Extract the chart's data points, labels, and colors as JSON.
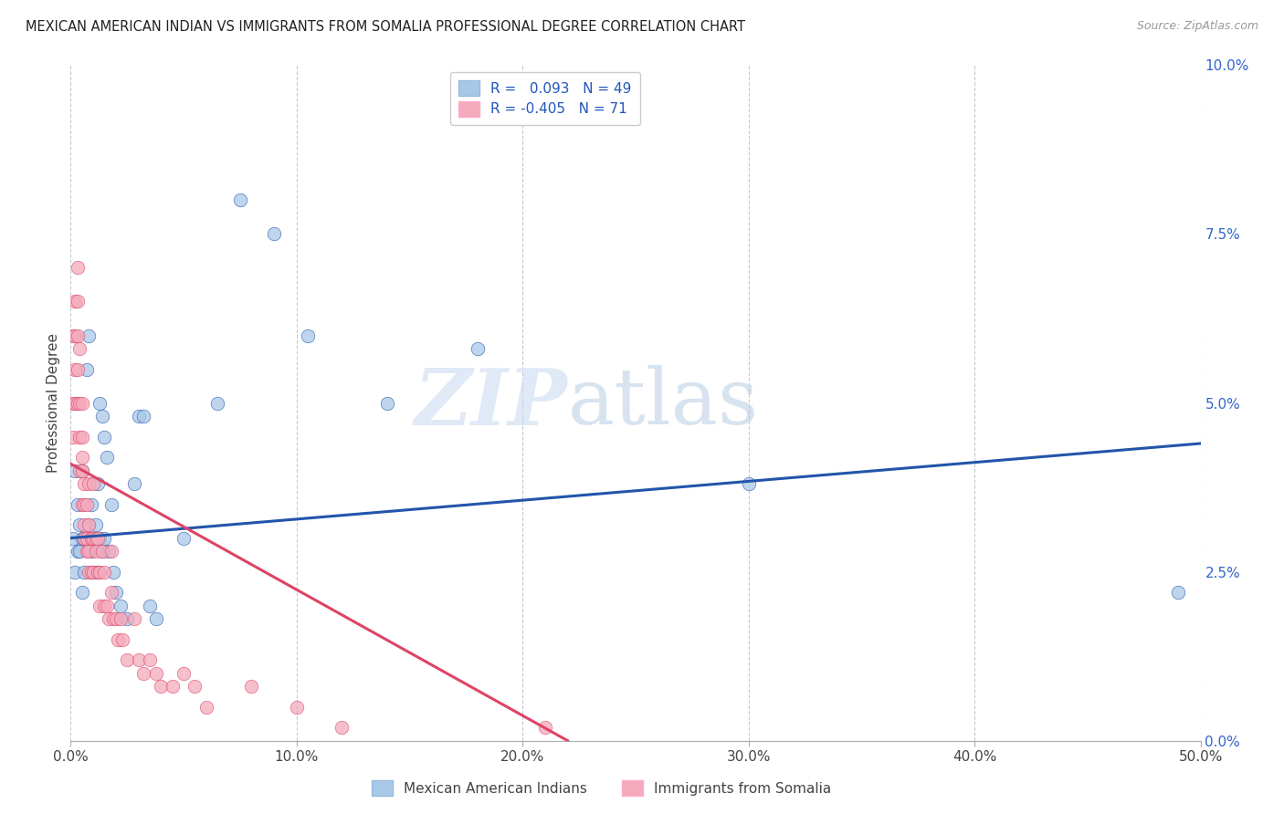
{
  "title": "MEXICAN AMERICAN INDIAN VS IMMIGRANTS FROM SOMALIA PROFESSIONAL DEGREE CORRELATION CHART",
  "source": "Source: ZipAtlas.com",
  "xlabel_ticks": [
    "0.0%",
    "10.0%",
    "20.0%",
    "30.0%",
    "40.0%",
    "50.0%"
  ],
  "ylabel_ticks": [
    "0.0%",
    "2.5%",
    "5.0%",
    "7.5%",
    "10.0%"
  ],
  "xlim": [
    0.0,
    0.5
  ],
  "ylim": [
    0.0,
    0.1
  ],
  "ylabel": "Professional Degree",
  "legend_labels": [
    "Mexican American Indians",
    "Immigrants from Somalia"
  ],
  "r_blue": 0.093,
  "n_blue": 49,
  "r_pink": -0.405,
  "n_pink": 71,
  "blue_color": "#A8C8E8",
  "pink_color": "#F4AABC",
  "blue_line_color": "#2255AA",
  "pink_line_color": "#DD4466",
  "watermark_zip": "ZIP",
  "watermark_atlas": "atlas",
  "blue_line_x": [
    0.0,
    0.5
  ],
  "blue_line_y": [
    0.03,
    0.044
  ],
  "pink_line_x": [
    0.0,
    0.22
  ],
  "pink_line_y": [
    0.041,
    0.0
  ],
  "blue_scatter_x": [
    0.001,
    0.002,
    0.002,
    0.003,
    0.003,
    0.004,
    0.004,
    0.005,
    0.005,
    0.005,
    0.006,
    0.006,
    0.007,
    0.008,
    0.008,
    0.009,
    0.009,
    0.01,
    0.01,
    0.011,
    0.012,
    0.012,
    0.013,
    0.013,
    0.014,
    0.014,
    0.015,
    0.015,
    0.016,
    0.017,
    0.018,
    0.019,
    0.02,
    0.022,
    0.025,
    0.028,
    0.03,
    0.032,
    0.035,
    0.038,
    0.05,
    0.065,
    0.075,
    0.09,
    0.105,
    0.14,
    0.18,
    0.3,
    0.49
  ],
  "blue_scatter_y": [
    0.03,
    0.025,
    0.04,
    0.028,
    0.035,
    0.032,
    0.028,
    0.04,
    0.03,
    0.022,
    0.03,
    0.025,
    0.055,
    0.06,
    0.032,
    0.028,
    0.035,
    0.025,
    0.03,
    0.032,
    0.025,
    0.038,
    0.05,
    0.03,
    0.028,
    0.048,
    0.045,
    0.03,
    0.042,
    0.028,
    0.035,
    0.025,
    0.022,
    0.02,
    0.018,
    0.038,
    0.048,
    0.048,
    0.02,
    0.018,
    0.03,
    0.05,
    0.08,
    0.075,
    0.06,
    0.05,
    0.058,
    0.038,
    0.022
  ],
  "pink_scatter_x": [
    0.001,
    0.001,
    0.001,
    0.002,
    0.002,
    0.002,
    0.002,
    0.003,
    0.003,
    0.003,
    0.003,
    0.003,
    0.004,
    0.004,
    0.004,
    0.004,
    0.005,
    0.005,
    0.005,
    0.005,
    0.005,
    0.006,
    0.006,
    0.006,
    0.006,
    0.007,
    0.007,
    0.007,
    0.008,
    0.008,
    0.008,
    0.008,
    0.009,
    0.009,
    0.009,
    0.01,
    0.01,
    0.01,
    0.011,
    0.011,
    0.012,
    0.012,
    0.013,
    0.013,
    0.014,
    0.015,
    0.015,
    0.016,
    0.017,
    0.018,
    0.018,
    0.019,
    0.02,
    0.021,
    0.022,
    0.023,
    0.025,
    0.028,
    0.03,
    0.032,
    0.035,
    0.038,
    0.04,
    0.045,
    0.05,
    0.055,
    0.06,
    0.08,
    0.1,
    0.12,
    0.21
  ],
  "pink_scatter_y": [
    0.05,
    0.045,
    0.06,
    0.06,
    0.055,
    0.05,
    0.065,
    0.06,
    0.065,
    0.07,
    0.05,
    0.055,
    0.05,
    0.045,
    0.04,
    0.058,
    0.045,
    0.04,
    0.05,
    0.035,
    0.042,
    0.035,
    0.038,
    0.03,
    0.032,
    0.03,
    0.035,
    0.028,
    0.025,
    0.032,
    0.028,
    0.038,
    0.03,
    0.03,
    0.025,
    0.03,
    0.025,
    0.038,
    0.03,
    0.028,
    0.025,
    0.03,
    0.025,
    0.02,
    0.028,
    0.02,
    0.025,
    0.02,
    0.018,
    0.022,
    0.028,
    0.018,
    0.018,
    0.015,
    0.018,
    0.015,
    0.012,
    0.018,
    0.012,
    0.01,
    0.012,
    0.01,
    0.008,
    0.008,
    0.01,
    0.008,
    0.005,
    0.008,
    0.005,
    0.002,
    0.002
  ]
}
